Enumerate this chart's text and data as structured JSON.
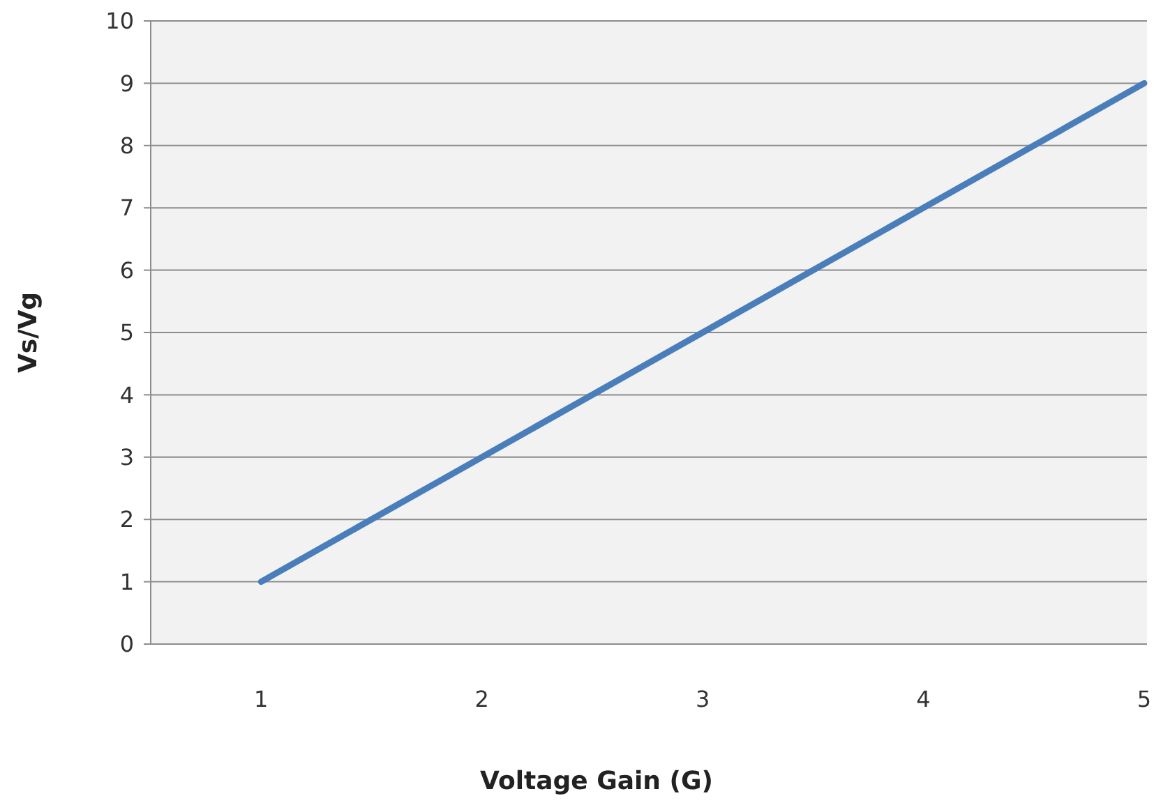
{
  "chart_data": {
    "type": "line",
    "xlabel": "Voltage Gain (G)",
    "ylabel": "Vs/Vg",
    "x": [
      1,
      2,
      3,
      4,
      5
    ],
    "series": [
      {
        "color": "#4a7ebb",
        "values": [
          1,
          3,
          5,
          7,
          9
        ]
      }
    ],
    "xlim": [
      0.5,
      5
    ],
    "xticks": [
      1,
      2,
      3,
      4,
      5
    ],
    "ylim": [
      0,
      10
    ],
    "yticks": [
      0,
      1,
      2,
      3,
      4,
      5,
      6,
      7,
      8,
      9,
      10
    ],
    "grid": "y",
    "marker": "none",
    "line_style": "solid"
  }
}
